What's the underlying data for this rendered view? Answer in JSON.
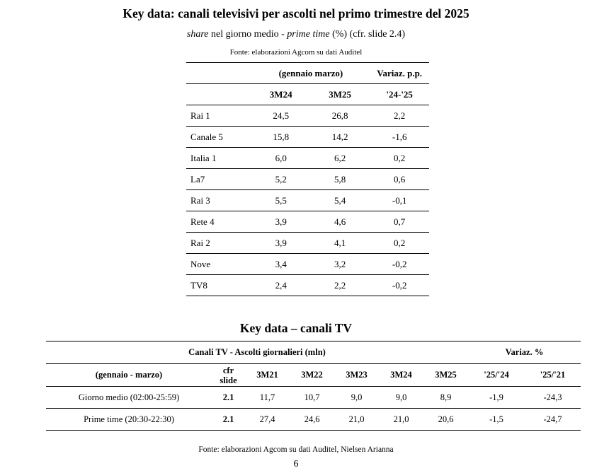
{
  "title1": "Key data: canali televisivi per ascolti nel primo trimestre del 2025",
  "subtitle1": {
    "part1": "share",
    "part2": " nel giorno medio - ",
    "part3": "prime time",
    "part4": " (%) (cfr. slide 2.4)"
  },
  "source1": "Fonte: elaborazioni Agcom su dati Auditel",
  "table1": {
    "header_period": "(gennaio marzo)",
    "header_variation": "Variaz. p.p.",
    "col_3m24": "3M24",
    "col_3m25": "3M25",
    "col_var": "'24-'25",
    "rows": [
      {
        "channel": "Rai 1",
        "v24": "24,5",
        "v25": "26,8",
        "var": "2,2"
      },
      {
        "channel": "Canale 5",
        "v24": "15,8",
        "v25": "14,2",
        "var": "-1,6"
      },
      {
        "channel": "Italia 1",
        "v24": "6,0",
        "v25": "6,2",
        "var": "0,2"
      },
      {
        "channel": "La7",
        "v24": "5,2",
        "v25": "5,8",
        "var": "0,6"
      },
      {
        "channel": "Rai 3",
        "v24": "5,5",
        "v25": "5,4",
        "var": "-0,1"
      },
      {
        "channel": "Rete 4",
        "v24": "3,9",
        "v25": "4,6",
        "var": "0,7"
      },
      {
        "channel": "Rai 2",
        "v24": "3,9",
        "v25": "4,1",
        "var": "0,2"
      },
      {
        "channel": "Nove",
        "v24": "3,4",
        "v25": "3,2",
        "var": "-0,2"
      },
      {
        "channel": "TV8",
        "v24": "2,4",
        "v25": "2,2",
        "var": "-0,2"
      }
    ]
  },
  "title2": "Key data – canali TV",
  "table2": {
    "header_main": "Canali TV - Ascolti giornalieri (mln)",
    "header_variation": "Variaz. %",
    "header_period": "(gennaio - marzo)",
    "header_cfr": "cfr slide",
    "cols": [
      "3M21",
      "3M22",
      "3M23",
      "3M24",
      "3M25"
    ],
    "var_cols": [
      "'25/'24",
      "'25/'21"
    ],
    "rows": [
      {
        "label": "Giorno medio (02:00-25:59)",
        "slide": "2.1",
        "values": [
          "11,7",
          "10,7",
          "9,0",
          "9,0",
          "8,9"
        ],
        "vars": [
          "-1,9",
          "-24,3"
        ]
      },
      {
        "label": "Prime time (20:30-22:30)",
        "slide": "2.1",
        "values": [
          "27,4",
          "24,6",
          "21,0",
          "21,0",
          "20,6"
        ],
        "vars": [
          "-1,5",
          "-24,7"
        ]
      }
    ]
  },
  "source2": "Fonte: elaborazioni Agcom su dati Auditel, Nielsen Arianna",
  "page_number": "6"
}
